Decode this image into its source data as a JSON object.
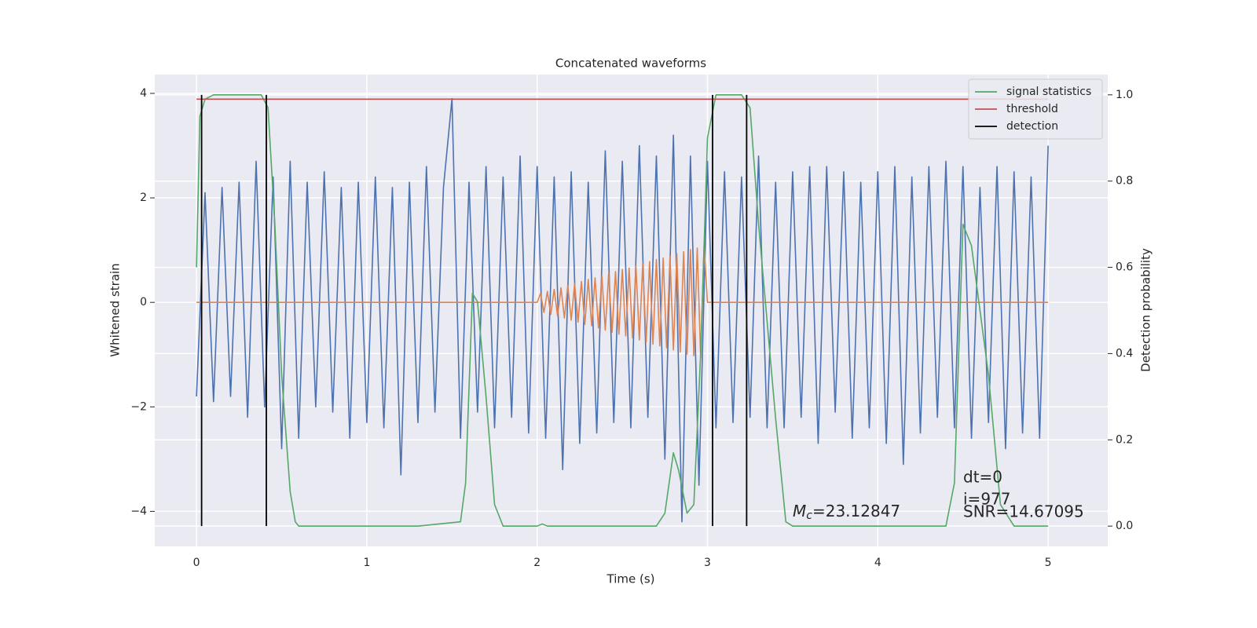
{
  "chart_data": {
    "type": "line",
    "title": "Concatenated waveforms",
    "x_label": "Time (s)",
    "y_label": "Whitened strain",
    "y2_label": "Detection probability",
    "xlim": [
      -0.245,
      5.35
    ],
    "ylim": [
      -4.67,
      4.36
    ],
    "y2lim": [
      -0.047,
      1.047
    ],
    "xticks": [
      0,
      1,
      2,
      3,
      4,
      5
    ],
    "yticks": [
      {
        "value": -4,
        "label": "−4"
      },
      {
        "value": -2,
        "label": "−2"
      },
      0,
      2,
      4
    ],
    "y2ticks": [
      {
        "value": 0,
        "label": "0.0"
      },
      0.2,
      0.4,
      0.6,
      0.8,
      {
        "value": 1,
        "label": "1.0"
      }
    ],
    "grid": true,
    "legend": "upper right",
    "series": [
      {
        "color": "#4c72b0",
        "x": [
          0,
          0.05,
          0.1,
          0.15,
          0.2,
          0.25,
          0.3,
          0.35,
          0.4,
          0.45,
          0.5,
          0.55,
          0.6,
          0.65,
          0.7,
          0.75,
          0.8,
          0.85,
          0.9,
          0.95,
          1,
          1.05,
          1.1,
          1.15,
          1.2,
          1.25,
          1.3,
          1.35,
          1.4,
          1.45,
          1.5,
          1.55,
          1.6,
          1.65,
          1.7,
          1.75,
          1.8,
          1.85,
          1.9,
          1.95,
          2,
          2.05,
          2.1,
          2.15,
          2.2,
          2.25,
          2.3,
          2.35,
          2.4,
          2.45,
          2.5,
          2.55,
          2.6,
          2.65,
          2.7,
          2.75,
          2.8,
          2.85,
          2.9,
          2.95,
          3,
          3.05,
          3.1,
          3.15,
          3.2,
          3.25,
          3.3,
          3.35,
          3.4,
          3.45,
          3.5,
          3.55,
          3.6,
          3.65,
          3.7,
          3.75,
          3.8,
          3.85,
          3.9,
          3.95,
          4,
          4.05,
          4.1,
          4.15,
          4.2,
          4.25,
          4.3,
          4.35,
          4.4,
          4.45,
          4.5,
          4.55,
          4.6,
          4.65,
          4.7,
          4.75,
          4.8,
          4.85,
          4.9,
          4.95,
          5
        ],
        "values": [
          -1.8,
          2.1,
          -1.9,
          2.2,
          -1.8,
          2.3,
          -2.2,
          2.7,
          -2.0,
          2.4,
          -2.8,
          2.7,
          -2.6,
          2.3,
          -2.0,
          2.5,
          -2.1,
          2.2,
          -2.6,
          2.3,
          -2.3,
          2.4,
          -2.4,
          2.2,
          -3.3,
          2.3,
          -2.3,
          2.6,
          -2.1,
          2.2,
          3.9,
          -2.6,
          2.3,
          -2.1,
          2.6,
          -2.4,
          2.4,
          -2.2,
          2.8,
          -2.5,
          2.6,
          -2.6,
          2.4,
          -3.2,
          2.5,
          -2.7,
          2.3,
          -2.5,
          2.9,
          -2.3,
          2.7,
          -2.4,
          3.0,
          -2.2,
          2.8,
          -3.0,
          3.2,
          -4.2,
          2.8,
          -3.5,
          2.7,
          -2.4,
          2.5,
          -2.3,
          2.4,
          -2.2,
          2.8,
          -2.4,
          2.3,
          -2.4,
          2.5,
          -2.2,
          2.6,
          -2.7,
          2.6,
          -2.1,
          2.5,
          -2.6,
          2.3,
          -2.4,
          2.5,
          -2.7,
          2.6,
          -3.1,
          2.4,
          -2.5,
          2.6,
          -2.2,
          2.7,
          -2.4,
          2.6,
          -2.6,
          2.2,
          -2.3,
          2.6,
          -2.8,
          2.5,
          -2.5,
          2.4,
          -2.6,
          3.0
        ]
      },
      {
        "color": "#dd8452",
        "x": [
          0,
          2,
          2.02,
          2.04,
          2.06,
          2.08,
          2.1,
          2.12,
          2.14,
          2.16,
          2.18,
          2.2,
          2.22,
          2.24,
          2.26,
          2.28,
          2.3,
          2.32,
          2.34,
          2.36,
          2.38,
          2.4,
          2.42,
          2.44,
          2.46,
          2.48,
          2.5,
          2.52,
          2.54,
          2.56,
          2.58,
          2.6,
          2.62,
          2.64,
          2.66,
          2.68,
          2.7,
          2.72,
          2.74,
          2.76,
          2.78,
          2.8,
          2.82,
          2.84,
          2.86,
          2.88,
          2.9,
          2.92,
          2.94,
          2.96,
          2.98,
          3,
          5
        ],
        "values": [
          0,
          0,
          0.17,
          -0.19,
          0.21,
          -0.23,
          0.25,
          -0.26,
          0.28,
          -0.3,
          0.32,
          -0.34,
          0.36,
          -0.38,
          0.4,
          -0.42,
          0.44,
          -0.45,
          0.47,
          -0.49,
          0.51,
          -0.53,
          0.55,
          -0.57,
          0.59,
          -0.61,
          0.63,
          -0.64,
          0.66,
          -0.68,
          0.7,
          -0.72,
          0.74,
          -0.76,
          0.78,
          -0.8,
          0.82,
          -0.83,
          0.85,
          -0.87,
          0.89,
          -0.91,
          0.93,
          -0.95,
          0.97,
          -0.99,
          1.01,
          -1.02,
          1.04,
          -1.06,
          1.08,
          0,
          0
        ]
      },
      {
        "name": "signal statistics",
        "color": "#55a868",
        "axis": "y2",
        "x": [
          0,
          0.02,
          0.05,
          0.1,
          0.38,
          0.42,
          0.46,
          0.5,
          0.55,
          0.58,
          0.6,
          1.3,
          1.55,
          1.58,
          1.62,
          1.65,
          1.7,
          1.75,
          1.8,
          2.0,
          2.03,
          2.06,
          2.7,
          2.75,
          2.8,
          2.83,
          2.88,
          2.92,
          2.96,
          3.0,
          3.05,
          3.2,
          3.25,
          3.3,
          3.4,
          3.46,
          3.5,
          4.4,
          4.45,
          4.5,
          4.55,
          4.65,
          4.72,
          4.8,
          5.0
        ],
        "values": [
          0.6,
          0.95,
          0.99,
          1.0,
          1.0,
          0.97,
          0.7,
          0.35,
          0.08,
          0.01,
          0.0,
          0.0,
          0.01,
          0.1,
          0.54,
          0.52,
          0.3,
          0.05,
          0.0,
          0.0,
          0.005,
          0.0,
          0.0,
          0.03,
          0.17,
          0.13,
          0.03,
          0.05,
          0.4,
          0.9,
          1.0,
          1.0,
          0.97,
          0.7,
          0.25,
          0.01,
          0.0,
          0.0,
          0.1,
          0.7,
          0.65,
          0.35,
          0.05,
          0.0,
          0.0
        ]
      },
      {
        "name": "threshold",
        "color": "#c44e52",
        "axis": "y2",
        "x": [
          0,
          5
        ],
        "values": [
          0.99,
          0.99
        ]
      },
      {
        "name": "detection",
        "color": "#000000",
        "axis": "y2",
        "type": "vlines",
        "x": [
          0.03,
          0.41,
          3.03,
          3.23
        ],
        "ymin": 0,
        "ymax": 1
      }
    ],
    "annotations": {
      "mc": {
        "symbol": "M",
        "subscript": "c",
        "text": "=23.12847"
      },
      "dt": "dt=0",
      "i": "i=977",
      "snr": "SNR=14.67095"
    }
  }
}
